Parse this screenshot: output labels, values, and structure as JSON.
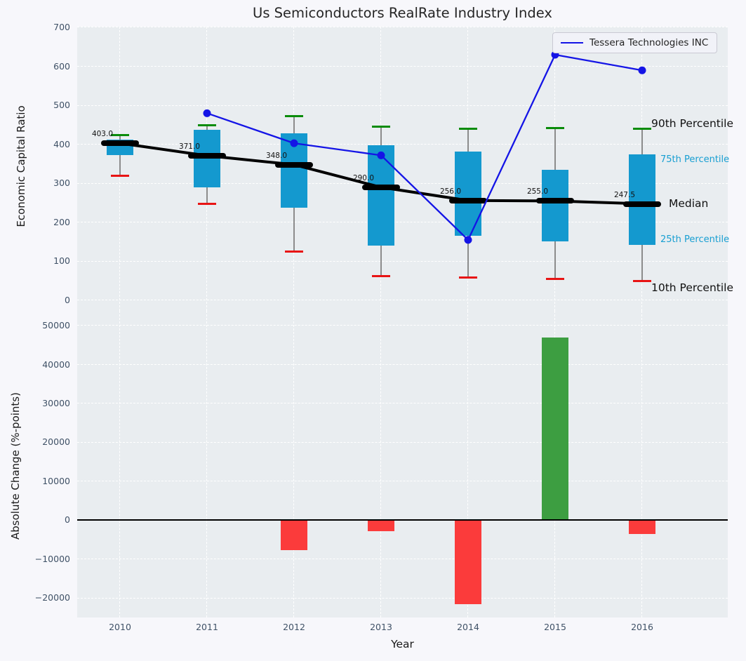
{
  "figure": {
    "background": "#f7f7fb",
    "axes_background": "#e9edf0",
    "grid_color": "#ffffff",
    "tick_color": "#3f5166"
  },
  "chart_data": [
    {
      "type": "boxplot+line",
      "title": "Us Semiconductors RealRate Industry Index",
      "ylabel": "Economic Capital Ratio",
      "ylim": [
        -27,
        702
      ],
      "yticks": [
        0,
        100,
        200,
        300,
        400,
        500,
        600,
        700
      ],
      "categories": [
        "2010",
        "2011",
        "2012",
        "2013",
        "2014",
        "2015",
        "2016"
      ],
      "grid": true,
      "legend_position": "upper right",
      "colors": {
        "box": "#1499cf",
        "median": "#000000",
        "whisker": "#8c8c8c",
        "cap_high": "#0a8c0a",
        "cap_low": "#e81414",
        "series": "#1414e6",
        "annotation_small": "#189fd2"
      },
      "boxes": [
        {
          "year": "2010",
          "p10": 320,
          "p25": 372,
          "median": 403,
          "p75": 412,
          "p90": 424,
          "label": "403.0"
        },
        {
          "year": "2011",
          "p10": 247,
          "p25": 290,
          "median": 371,
          "p75": 437,
          "p90": 450,
          "label": "371.0"
        },
        {
          "year": "2012",
          "p10": 125,
          "p25": 237,
          "median": 348,
          "p75": 428,
          "p90": 472,
          "label": "348.0"
        },
        {
          "year": "2013",
          "p10": 63,
          "p25": 140,
          "median": 290,
          "p75": 397,
          "p90": 445,
          "label": "290.0"
        },
        {
          "year": "2014",
          "p10": 58,
          "p25": 166,
          "median": 256,
          "p75": 381,
          "p90": 440,
          "label": "256.0"
        },
        {
          "year": "2015",
          "p10": 55,
          "p25": 151,
          "median": 255,
          "p75": 335,
          "p90": 442,
          "label": "255.0"
        },
        {
          "year": "2016",
          "p10": 50,
          "p25": 142,
          "median": 247.5,
          "p75": 375,
          "p90": 440,
          "label": "247.5"
        }
      ],
      "series": [
        {
          "name": "Tessera Technologies INC",
          "x": [
            "2011",
            "2012",
            "2013",
            "2014",
            "2015",
            "2016"
          ],
          "values": [
            480,
            403,
            372,
            155,
            630,
            590
          ]
        }
      ],
      "annotations": [
        {
          "label": "90th Percentile",
          "at": 452,
          "emph": "large"
        },
        {
          "label": "75th Percentile",
          "at": 360,
          "emph": "small"
        },
        {
          "label": "Median",
          "at": 247,
          "emph": "large"
        },
        {
          "label": "25th Percentile",
          "at": 155,
          "emph": "small"
        },
        {
          "label": "10th Percentile",
          "at": 30,
          "emph": "large"
        }
      ]
    },
    {
      "type": "bar",
      "ylabel": "Absolute Change (%-points)",
      "xlabel": "Year",
      "ylim": [
        -25000,
        53800
      ],
      "yticks": [
        -20000,
        -10000,
        0,
        10000,
        20000,
        30000,
        40000,
        50000
      ],
      "categories": [
        "2010",
        "2011",
        "2012",
        "2013",
        "2014",
        "2015",
        "2016"
      ],
      "values": [
        null,
        null,
        -7700,
        -2900,
        -21600,
        47000,
        -3600
      ],
      "colors": {
        "positive": "#3d9e41",
        "negative": "#fb3b3b",
        "zero_line": "#000000"
      }
    }
  ]
}
